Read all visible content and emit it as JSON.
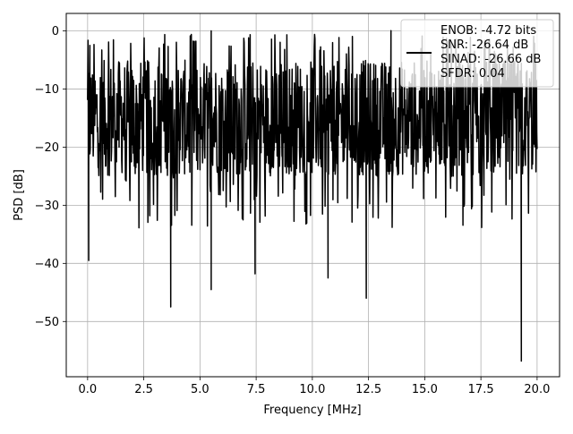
{
  "chart_data": {
    "type": "line",
    "title": "",
    "xlabel": "Frequency [MHz]",
    "ylabel": "PSD [dB]",
    "xlim": [
      -0.95,
      21.0
    ],
    "ylim": [
      -59.5,
      3.0
    ],
    "xticks": [
      0.0,
      2.5,
      5.0,
      7.5,
      10.0,
      12.5,
      15.0,
      17.5,
      20.0
    ],
    "xtick_labels": [
      "0.0",
      "2.5",
      "5.0",
      "7.5",
      "10.0",
      "12.5",
      "15.0",
      "17.5",
      "20.0"
    ],
    "yticks": [
      0,
      -10,
      -20,
      -30,
      -40,
      -50
    ],
    "ytick_labels": [
      "0",
      "−10",
      "−20",
      "−30",
      "−40",
      "−50"
    ],
    "grid": true,
    "legend_position": "top-right",
    "series": [
      {
        "name": "ENOB: -4.72 bits\nSNR: -26.64 dB\nSINAD: -26.66 dB\nSFDR: 0.04",
        "color": "#000000",
        "signal": {
          "x_range": [
            0.0,
            20.0
          ],
          "typical_range_db": [
            -25,
            -5
          ],
          "max_db": 0.04,
          "notable_points": [
            {
              "x": 0.05,
              "y": -39.5
            },
            {
              "x": 0.1,
              "y": -2.5
            },
            {
              "x": 3.7,
              "y": -47.5
            },
            {
              "x": 5.5,
              "y": -44.5
            },
            {
              "x": 5.5,
              "y": 0.0
            },
            {
              "x": 7.45,
              "y": -41.8
            },
            {
              "x": 10.7,
              "y": -42.5
            },
            {
              "x": 12.4,
              "y": -46.0
            },
            {
              "x": 13.5,
              "y": 0.04
            },
            {
              "x": 19.3,
              "y": -56.8
            }
          ]
        }
      }
    ]
  }
}
